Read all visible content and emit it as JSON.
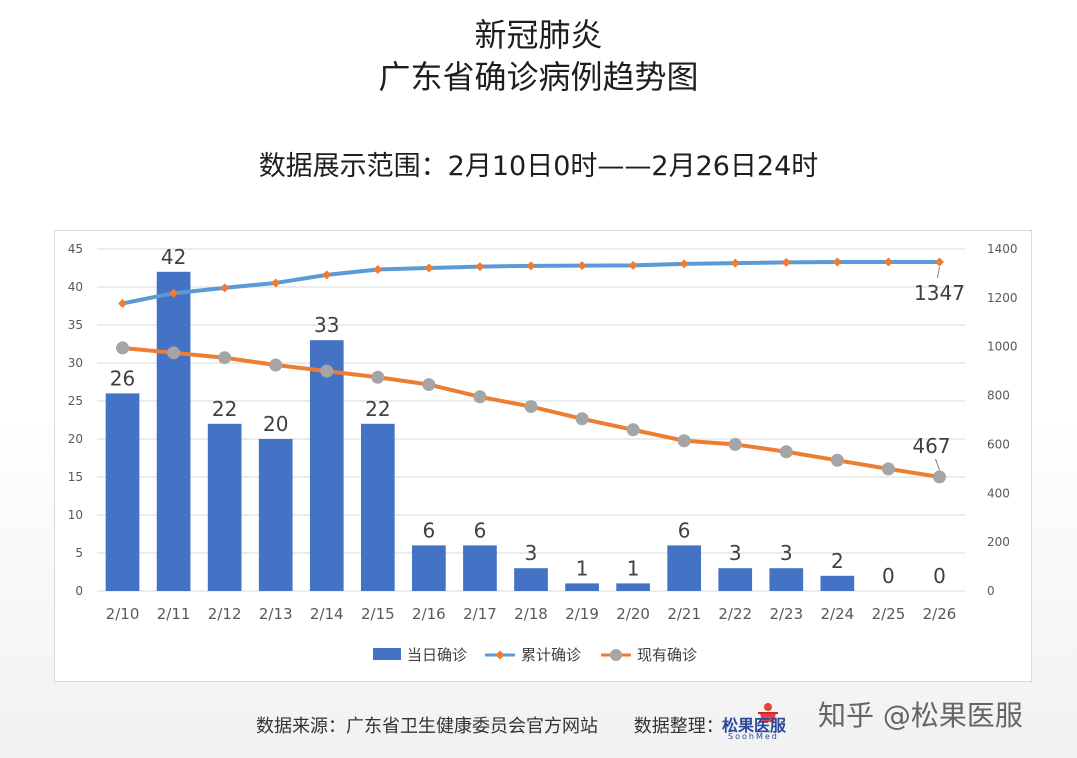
{
  "header": {
    "title_line1": "新冠肺炎",
    "title_line2": "广东省确诊病例趋势图",
    "range_text": "数据展示范围：2月10日0时——2月26日24时"
  },
  "footer": {
    "source_text": "数据来源：广东省卫生健康委员会官方网站",
    "compiler_text": "数据整理：",
    "logo_text": "松果医服",
    "logo_sub": "SoohMed"
  },
  "watermark": "知乎 @松果医服",
  "colors": {
    "bar": "#4472c4",
    "cumulative_line": "#5b9bd5",
    "cumulative_marker": "#ed7d31",
    "current_line": "#ed7d31",
    "current_marker": "#a5a5a5",
    "grid": "#d9d9d9",
    "axis_text": "#595959"
  },
  "chart_data": {
    "type": "bar",
    "categories": [
      "2/10",
      "2/11",
      "2/12",
      "2/13",
      "2/14",
      "2/15",
      "2/16",
      "2/17",
      "2/18",
      "2/19",
      "2/20",
      "2/21",
      "2/22",
      "2/23",
      "2/24",
      "2/25",
      "2/26"
    ],
    "left_axis": {
      "ylim": [
        0,
        45
      ],
      "ticks": [
        0,
        5,
        10,
        15,
        20,
        25,
        30,
        35,
        40,
        45
      ]
    },
    "right_axis": {
      "ylim": [
        0,
        1400
      ],
      "ticks": [
        0,
        200,
        400,
        600,
        800,
        1000,
        1200,
        1400
      ]
    },
    "series": [
      {
        "name": "当日确诊",
        "type": "bar",
        "axis": "left",
        "values": [
          26,
          42,
          22,
          20,
          33,
          22,
          6,
          6,
          3,
          1,
          1,
          6,
          3,
          3,
          2,
          0,
          0
        ],
        "labels": [
          "26",
          "42",
          "22",
          "20",
          "33",
          "22",
          "6",
          "6",
          "3",
          "1",
          "1",
          "6",
          "3",
          "3",
          "2",
          "0",
          "0"
        ]
      },
      {
        "name": "累计确诊",
        "type": "line",
        "axis": "right",
        "values": [
          1177,
          1219,
          1241,
          1261,
          1294,
          1316,
          1322,
          1328,
          1331,
          1332,
          1333,
          1339,
          1342,
          1345,
          1347,
          1347,
          1347
        ],
        "end_label": "1347"
      },
      {
        "name": "现有确诊",
        "type": "line",
        "axis": "right",
        "values": [
          995,
          975,
          955,
          925,
          900,
          875,
          845,
          795,
          755,
          705,
          660,
          615,
          600,
          570,
          535,
          500,
          467
        ],
        "end_label": "467"
      }
    ],
    "legend": "bottom",
    "grid": true
  }
}
